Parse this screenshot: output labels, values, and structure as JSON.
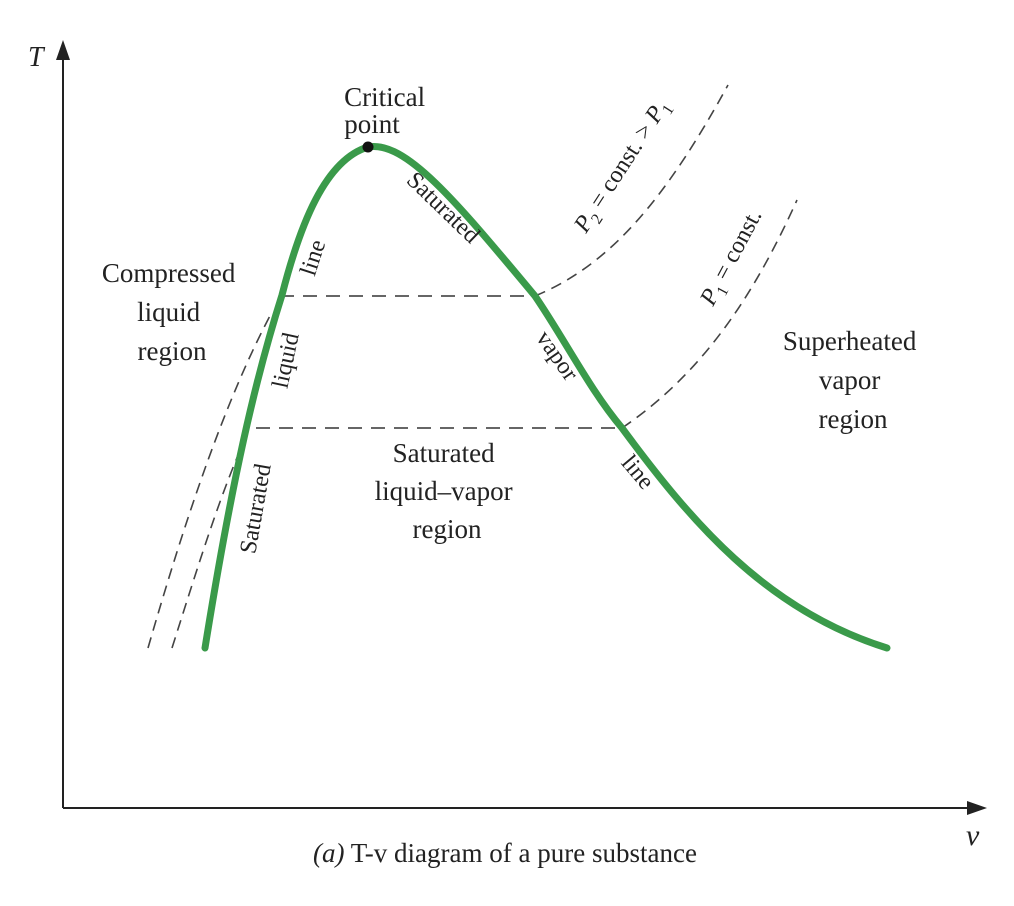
{
  "colors": {
    "saturation_curve": "#3a9a4a",
    "ink": "#222222",
    "dashed": "#555555",
    "background": "#ffffff"
  },
  "axes": {
    "y_label": "T",
    "x_label": "v"
  },
  "labels": {
    "critical_point_line1": "Critical",
    "critical_point_line2": "point",
    "compressed_line1": "Compressed",
    "compressed_line2": "liquid",
    "compressed_line3": "region",
    "superheated_line1": "Superheated",
    "superheated_line2": "vapor",
    "superheated_line3": "region",
    "mixture_line1": "Saturated",
    "mixture_line2": "liquid–vapor",
    "mixture_line3": "region",
    "sat_liquid_word1": "Saturated",
    "sat_liquid_word2": "liquid",
    "sat_liquid_word3": "line",
    "sat_vapor_word1": "Saturated",
    "sat_vapor_word2": "vapor",
    "sat_vapor_word3": "line"
  },
  "isobars": {
    "p2": {
      "symbol": "P",
      "subscript": "2",
      "relation": " = const. > ",
      "compare_symbol": "P",
      "compare_subscript": "1"
    },
    "p1": {
      "symbol": "P",
      "subscript": "1",
      "relation": " = const."
    }
  },
  "caption": {
    "part": "(a)",
    "title": " T-v diagram of a pure substance"
  }
}
